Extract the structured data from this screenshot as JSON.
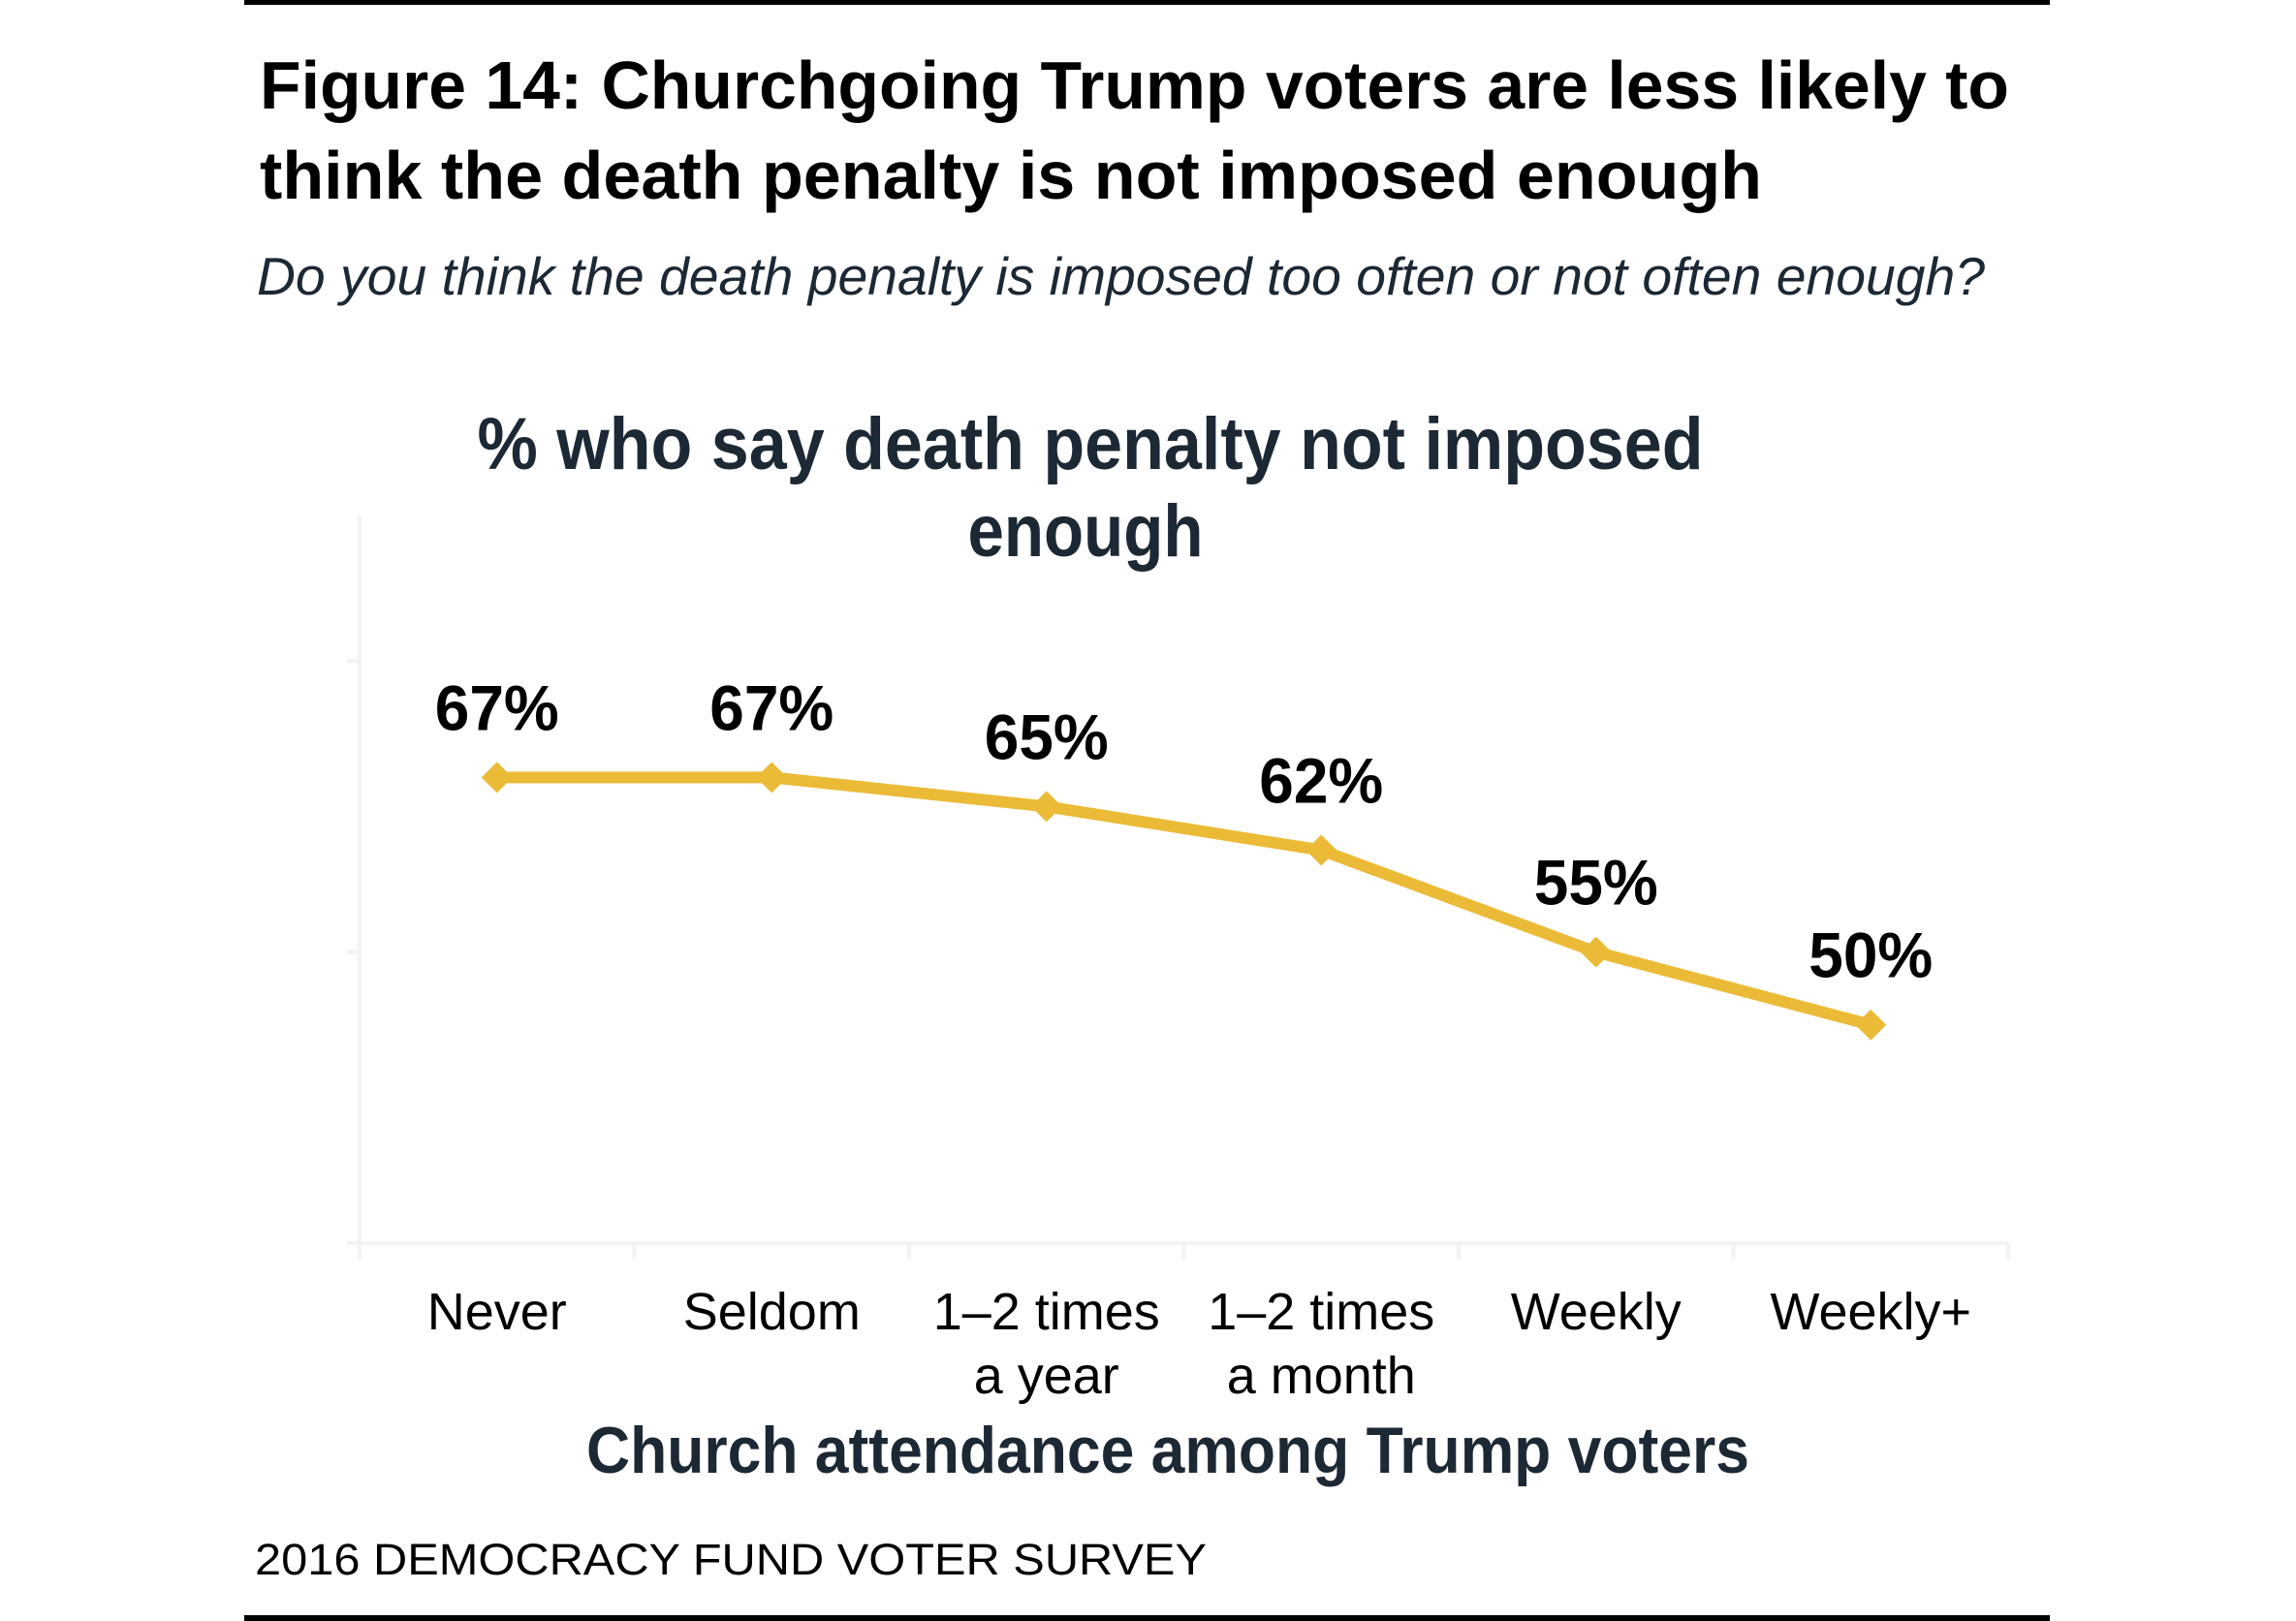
{
  "figure": {
    "title_lines": [
      "Figure 14: Churchgoing Trump voters are less likely to",
      "think the death penalty is not imposed enough"
    ],
    "subtitle": "Do you think the death penalty is imposed too often or not often enough?",
    "source": "2016 DEMOCRACY FUND VOTER SURVEY"
  },
  "colors": {
    "series": "#ebbb37",
    "title": "#000000",
    "chart_text": "#1c2833",
    "axis": "#f3f3f3",
    "rule": "#000000"
  },
  "chart_data": {
    "type": "line",
    "title": "% who say death penalty not imposed enough",
    "title_lines": [
      "% who say death penalty not imposed",
      "enough"
    ],
    "xlabel": "Church attendance among Trump voters",
    "ylabel": "",
    "categories": [
      "Never",
      "Seldom",
      "1–2 times a year",
      "1–2 times a month",
      "Weekly",
      "Weekly+"
    ],
    "category_lines": [
      [
        "Never"
      ],
      [
        "Seldom"
      ],
      [
        "1–2 times",
        "a year"
      ],
      [
        "1–2 times",
        "a month"
      ],
      [
        "Weekly"
      ],
      [
        "Weekly+"
      ]
    ],
    "series": [
      {
        "name": "% who say death penalty not imposed enough",
        "values": [
          67,
          67,
          65,
          62,
          55,
          50
        ],
        "labels": [
          "67%",
          "67%",
          "65%",
          "62%",
          "55%",
          "50%"
        ],
        "marker": "diamond"
      }
    ],
    "ylim": [
      35,
      85
    ],
    "yticks": [
      35,
      55,
      75
    ],
    "ytick_labels_visible": false,
    "grid": false,
    "legend": "none"
  }
}
